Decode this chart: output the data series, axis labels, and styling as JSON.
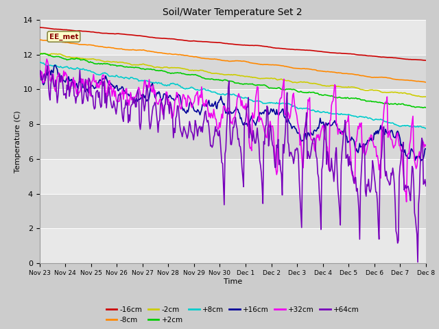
{
  "title": "Soil/Water Temperature Set 2",
  "xlabel": "Time",
  "ylabel": "Temperature (C)",
  "ylim": [
    0,
    14
  ],
  "yticks": [
    0,
    2,
    4,
    6,
    8,
    10,
    12,
    14
  ],
  "annotation_text": "EE_met",
  "series": [
    {
      "label": "-16cm",
      "color": "#cc0000",
      "lw": 1.2
    },
    {
      "label": "-8cm",
      "color": "#ff8800",
      "lw": 1.2
    },
    {
      "label": "-2cm",
      "color": "#cccc00",
      "lw": 1.2
    },
    {
      "label": "+2cm",
      "color": "#00cc00",
      "lw": 1.2
    },
    {
      "label": "+8cm",
      "color": "#00cccc",
      "lw": 1.2
    },
    {
      "label": "+16cm",
      "color": "#000099",
      "lw": 1.2
    },
    {
      "label": "+32cm",
      "color": "#ee00ee",
      "lw": 1.2
    },
    {
      "label": "+64cm",
      "color": "#7700bb",
      "lw": 1.2
    }
  ],
  "band_colors": [
    "#e8e8e8",
    "#d8d8d8",
    "#e8e8e8",
    "#d8d8d8",
    "#e8e8e8",
    "#d8d8d8",
    "#e8e8e8"
  ],
  "tick_labels": [
    "Nov 23",
    "Nov 24",
    "Nov 25",
    "Nov 26",
    "Nov 27",
    "Nov 28",
    "Nov 29",
    "Nov 30",
    "Dec 1",
    "Dec 2",
    "Dec 3",
    "Dec 4",
    "Dec 5",
    "Dec 6",
    "Dec 7",
    "Dec 8"
  ]
}
